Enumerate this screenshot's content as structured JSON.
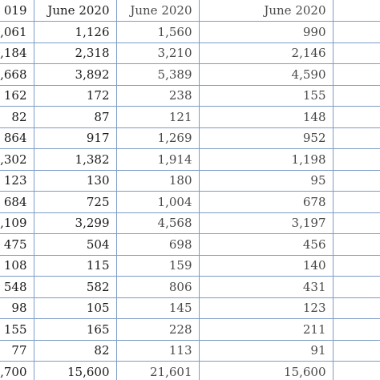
{
  "table": {
    "header": [
      "019",
      "June 2020",
      "June 2020",
      "June 2020"
    ],
    "rows": [
      [
        ",061",
        "1,126",
        "1,560",
        "990"
      ],
      [
        ",184",
        "2,318",
        "3,210",
        "2,146"
      ],
      [
        ",668",
        "3,892",
        "5,389",
        "4,590"
      ],
      [
        "162",
        "172",
        "238",
        "155"
      ],
      [
        "82",
        "87",
        "121",
        "148"
      ],
      [
        "864",
        "917",
        "1,269",
        "952"
      ],
      [
        ",302",
        "1,382",
        "1,914",
        "1,198"
      ],
      [
        "123",
        "130",
        "180",
        "95"
      ],
      [
        "684",
        "725",
        "1,004",
        "678"
      ],
      [
        ",109",
        "3,299",
        "4,568",
        "3,197"
      ],
      [
        "475",
        "504",
        "698",
        "456"
      ],
      [
        "108",
        "115",
        "159",
        "140"
      ],
      [
        "548",
        "582",
        "806",
        "431"
      ],
      [
        "98",
        "105",
        "145",
        "123"
      ],
      [
        "155",
        "165",
        "228",
        "211"
      ],
      [
        "77",
        "82",
        "113",
        "91"
      ],
      [
        ",700",
        "15,600",
        "21,601",
        "15,600"
      ]
    ]
  }
}
